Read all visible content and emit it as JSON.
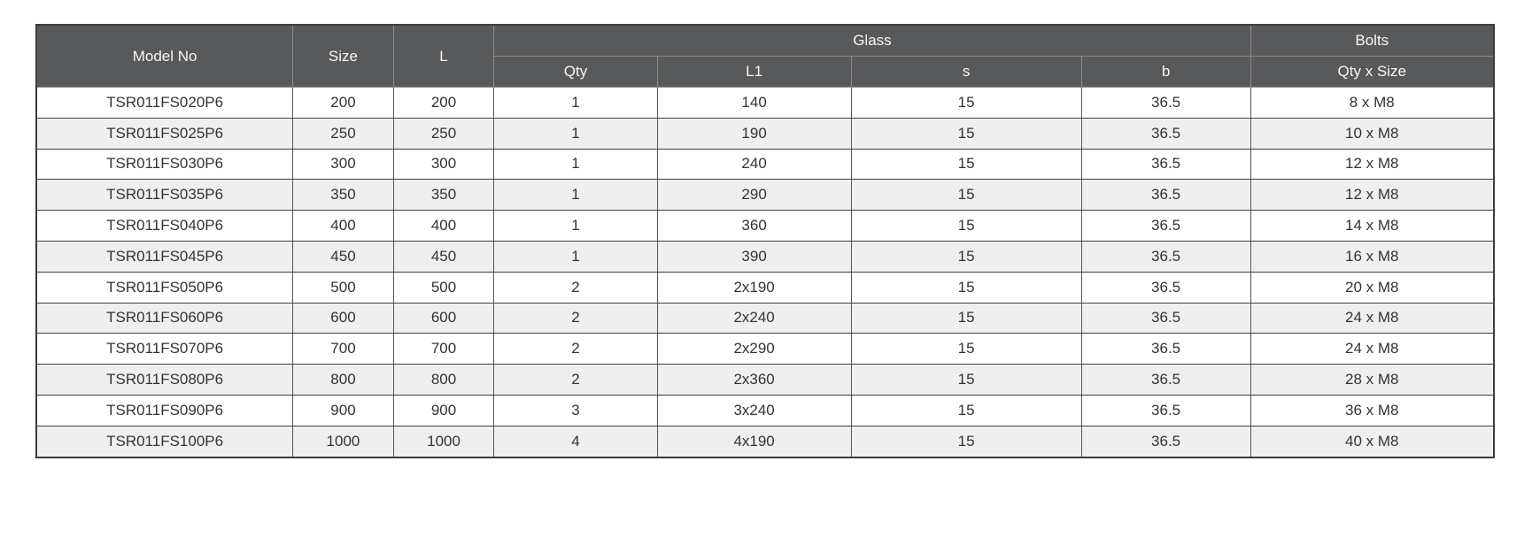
{
  "table": {
    "header": {
      "model_no": "Model No",
      "size": "Size",
      "l": "L",
      "glass_group": "Glass",
      "glass_sub": {
        "qty": "Qty",
        "l1": "L1",
        "s": "s",
        "b": "b"
      },
      "bolts_group": "Bolts",
      "bolts_sub": "Qty x Size"
    },
    "rows": [
      [
        "TSR011FS020P6",
        "200",
        "200",
        "1",
        "140",
        "15",
        "36.5",
        "8 x M8"
      ],
      [
        "TSR011FS025P6",
        "250",
        "250",
        "1",
        "190",
        "15",
        "36.5",
        "10 x M8"
      ],
      [
        "TSR011FS030P6",
        "300",
        "300",
        "1",
        "240",
        "15",
        "36.5",
        "12 x M8"
      ],
      [
        "TSR011FS035P6",
        "350",
        "350",
        "1",
        "290",
        "15",
        "36.5",
        "12 x M8"
      ],
      [
        "TSR011FS040P6",
        "400",
        "400",
        "1",
        "360",
        "15",
        "36.5",
        "14 x M8"
      ],
      [
        "TSR011FS045P6",
        "450",
        "450",
        "1",
        "390",
        "15",
        "36.5",
        "16 x M8"
      ],
      [
        "TSR011FS050P6",
        "500",
        "500",
        "2",
        "2x190",
        "15",
        "36.5",
        "20 x M8"
      ],
      [
        "TSR011FS060P6",
        "600",
        "600",
        "2",
        "2x240",
        "15",
        "36.5",
        "24 x M8"
      ],
      [
        "TSR011FS070P6",
        "700",
        "700",
        "2",
        "2x290",
        "15",
        "36.5",
        "24 x M8"
      ],
      [
        "TSR011FS080P6",
        "800",
        "800",
        "2",
        "2x360",
        "15",
        "36.5",
        "28 x M8"
      ],
      [
        "TSR011FS090P6",
        "900",
        "900",
        "3",
        "3x240",
        "15",
        "36.5",
        "36 x M8"
      ],
      [
        "TSR011FS100P6",
        "1000",
        "1000",
        "4",
        "4x190",
        "15",
        "36.5",
        "40 x M8"
      ]
    ],
    "column_keys": [
      "model-no",
      "size",
      "l",
      "glass-qty",
      "glass-l1",
      "glass-s",
      "glass-b",
      "bolts-qty-size"
    ]
  },
  "colors": {
    "header_bg": "#58595b",
    "header_text": "#f7f7f7",
    "row_alt_bg": "#efefef",
    "body_text": "#333333",
    "border": "#3f3f3f"
  }
}
